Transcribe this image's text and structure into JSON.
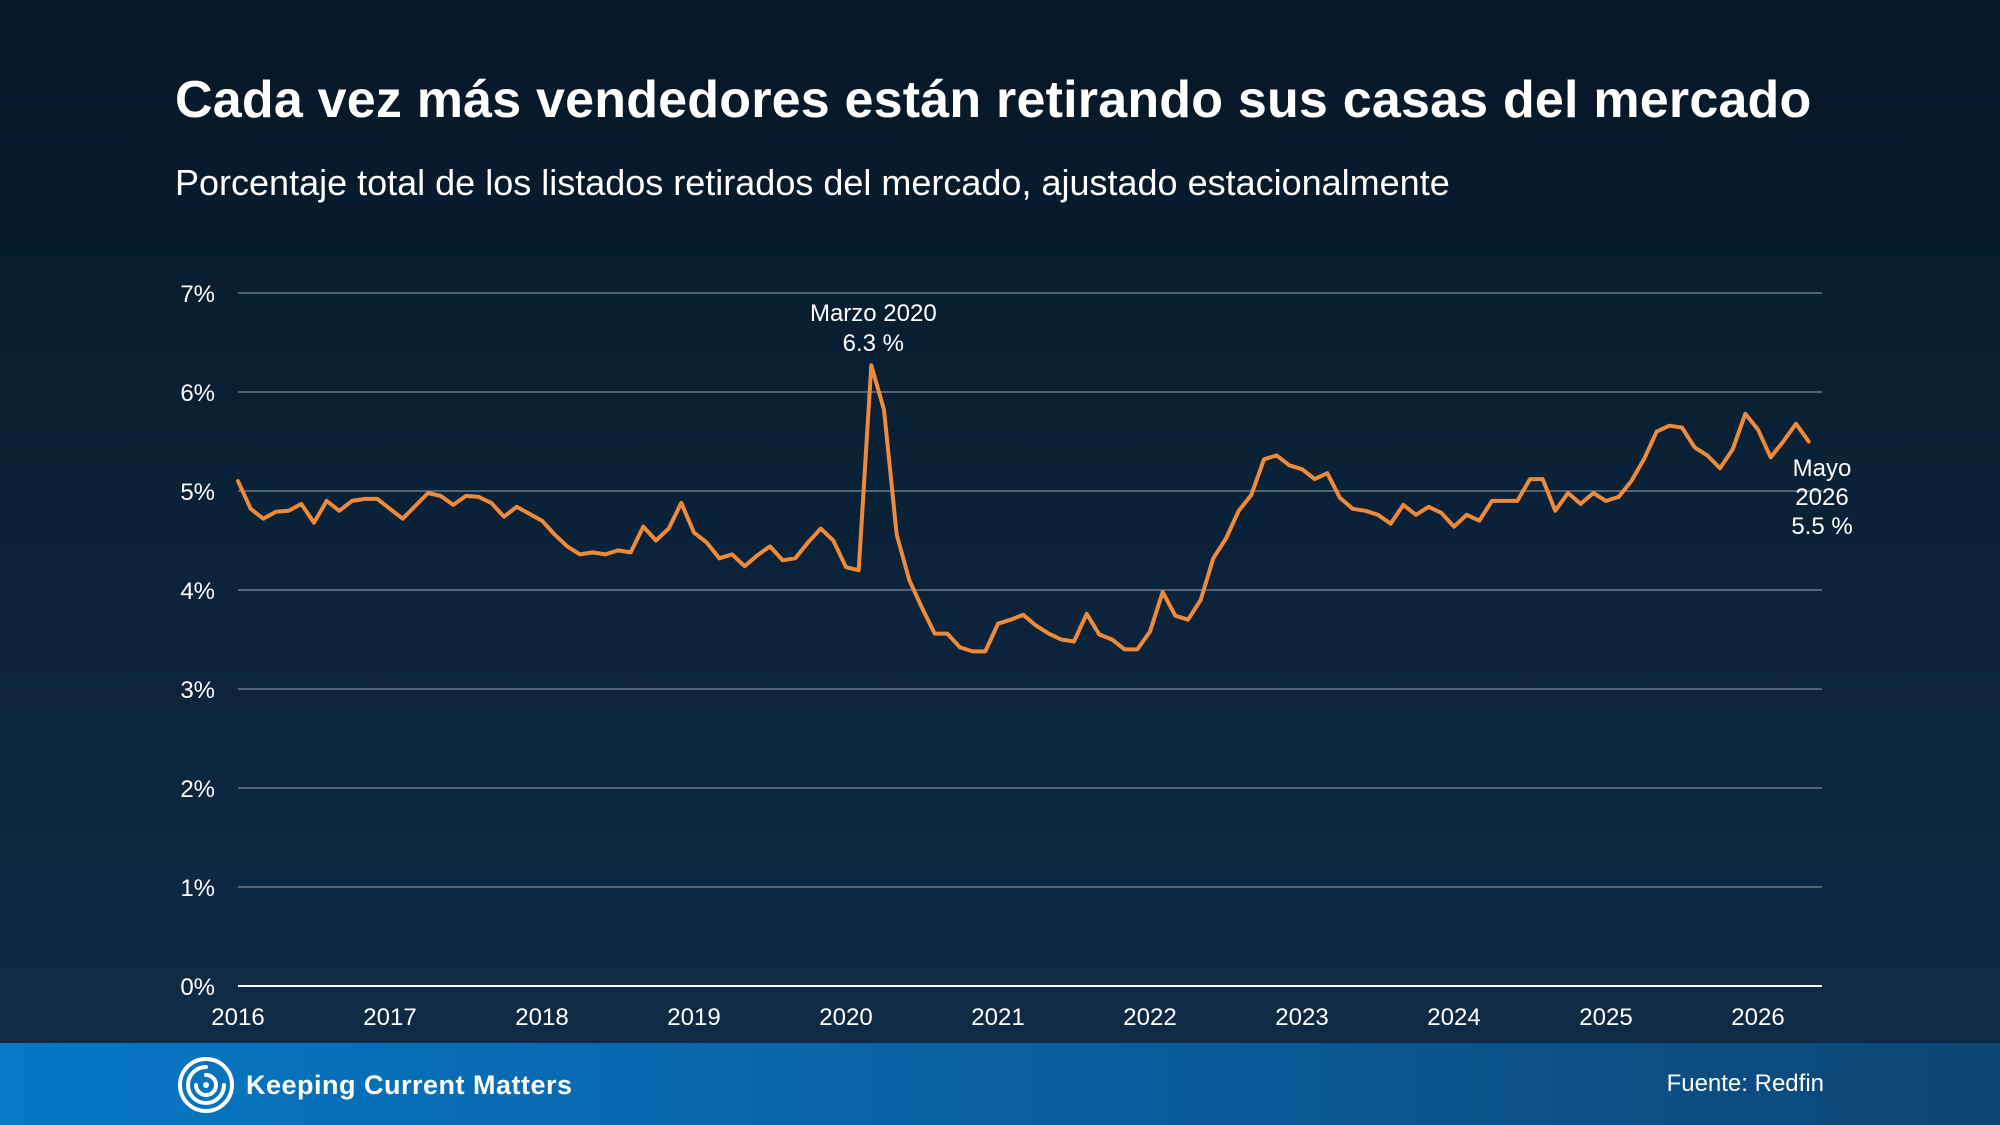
{
  "title": "Cada vez más vendedores están retirando sus casas del mercado",
  "subtitle": "Porcentaje total de los listados retirados del mercado, ajustado estacionalmente",
  "footer": {
    "logo_text": "Keeping Current Matters",
    "source": "Fuente: Redfin"
  },
  "colors": {
    "line": "#ee8a3a",
    "grid": "#7d8a99",
    "footer": "#0678c6"
  },
  "chart_data": {
    "type": "line",
    "title": "Cada vez más vendedores están retirando sus casas del mercado",
    "subtitle": "Porcentaje total de los listados retirados del mercado, ajustado estacionalmente",
    "xlabel": "",
    "ylabel": "",
    "ylim": [
      0,
      7
    ],
    "yticks": [
      "0%",
      "1%",
      "2%",
      "3%",
      "4%",
      "5%",
      "6%",
      "7%"
    ],
    "xticks": [
      "2016",
      "2017",
      "2018",
      "2019",
      "2020",
      "2021",
      "2022",
      "2023",
      "2024",
      "2025",
      "2026"
    ],
    "grid": true,
    "x_start": "2016-01",
    "x_end": "2026-05",
    "series": [
      {
        "values": [
          5.1,
          4.82,
          4.72,
          4.79,
          4.8,
          4.87,
          4.68,
          4.9,
          4.8,
          4.9,
          4.92,
          4.92,
          4.82,
          4.72,
          4.85,
          4.98,
          4.95,
          4.86,
          4.95,
          4.94,
          4.88,
          4.74,
          4.84,
          4.77,
          4.7,
          4.56,
          4.44,
          4.36,
          4.38,
          4.36,
          4.4,
          4.38,
          4.64,
          4.5,
          4.62,
          4.88,
          4.58,
          4.48,
          4.32,
          4.36,
          4.24,
          4.35,
          4.44,
          4.3,
          4.32,
          4.48,
          4.62,
          4.5,
          4.23,
          4.2,
          6.27,
          5.82,
          4.56,
          4.1,
          3.82,
          3.56,
          3.56,
          3.42,
          3.38,
          3.38,
          3.66,
          3.7,
          3.75,
          3.64,
          3.56,
          3.5,
          3.48,
          3.76,
          3.55,
          3.5,
          3.4,
          3.4,
          3.58,
          3.98,
          3.74,
          3.7,
          3.9,
          4.32,
          4.52,
          4.8,
          4.96,
          5.32,
          5.36,
          5.26,
          5.22,
          5.12,
          5.18,
          4.93,
          4.82,
          4.8,
          4.76,
          4.67,
          4.86,
          4.76,
          4.84,
          4.78,
          4.64,
          4.76,
          4.7,
          4.9,
          4.9,
          4.9,
          5.12,
          5.12,
          4.8,
          4.98,
          4.87,
          4.98,
          4.9,
          4.94,
          5.1,
          5.32,
          5.6,
          5.66,
          5.64,
          5.44,
          5.36,
          5.23,
          5.42,
          5.78,
          5.62,
          5.34,
          5.5,
          5.68,
          5.5
        ]
      }
    ],
    "annotations": [
      {
        "label_line1": "Marzo 2020",
        "label_line2": "6.3 %",
        "index": 50,
        "value": 6.3
      },
      {
        "label_line1": "Mayo",
        "label_line2": "2026",
        "label_line3": "5.5 %",
        "index": 124,
        "value": 5.5
      }
    ]
  }
}
